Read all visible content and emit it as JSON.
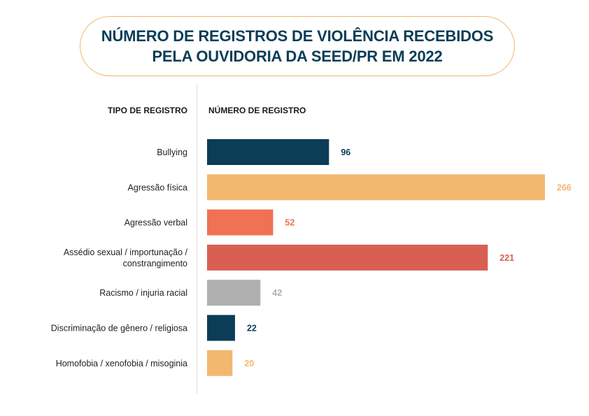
{
  "title": {
    "line1": "NÚMERO DE REGISTROS DE VIOLÊNCIA RECEBIDOS",
    "line2": "PELA OUVIDORIA DA SEED/PR EM 2022"
  },
  "headers": {
    "category": "TIPO DE REGISTRO",
    "value": "NÚMERO DE REGISTRO"
  },
  "chart_data": {
    "type": "bar",
    "orientation": "horizontal",
    "title": "NÚMERO DE REGISTROS DE VIOLÊNCIA RECEBIDOS PELA OUVIDORIA DA SEED/PR EM 2022",
    "xlabel": "NÚMERO DE REGISTRO",
    "ylabel": "TIPO DE REGISTRO",
    "xlim": [
      0,
      266
    ],
    "grid": false,
    "categories": [
      [
        "Bullying"
      ],
      [
        "Agressão física"
      ],
      [
        "Agressão verbal"
      ],
      [
        "Assédio sexual / importunação /",
        "constrangimento"
      ],
      [
        "Racismo / injuria racial"
      ],
      [
        "Discriminação de gênero / religiosa"
      ],
      [
        "Homofobia / xenofobia / misoginia"
      ]
    ],
    "values": [
      96,
      266,
      52,
      221,
      42,
      22,
      20
    ],
    "colors": [
      "#0b3d57",
      "#f2b86f",
      "#f07153",
      "#d95f53",
      "#b0b0b0",
      "#0b3d57",
      "#f2b86f"
    ]
  }
}
